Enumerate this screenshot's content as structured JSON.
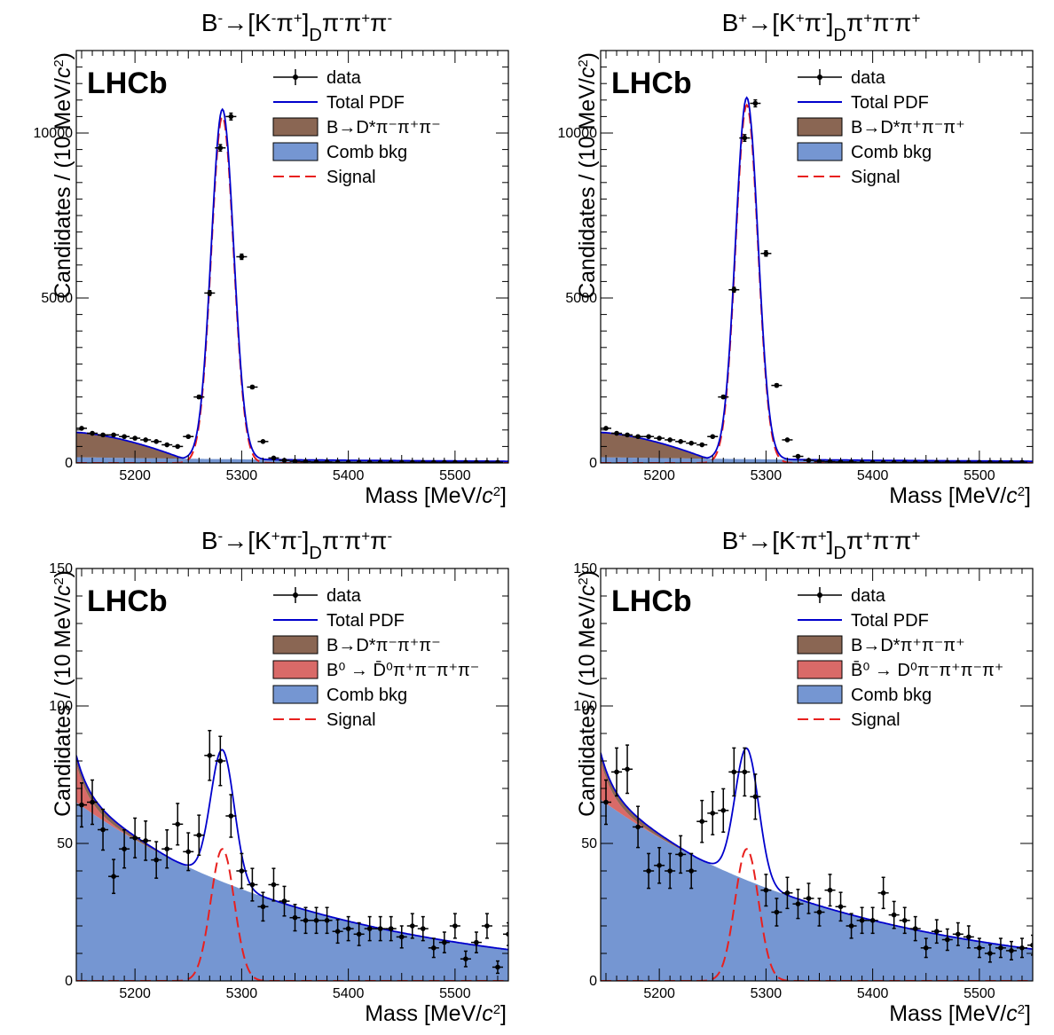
{
  "colors": {
    "data": "#000000",
    "total_pdf": "#0000cc",
    "signal": "#e8201e",
    "comb_bkg": "#7596d2",
    "partreco_bkg": "#8a6653",
    "b0_bkg": "#d96a68"
  },
  "chart_data": [
    {
      "type": "scatter",
      "title": "B⁻→[K⁻π⁺]_D π⁻π⁺π⁻",
      "title_parts": {
        "main": "B",
        "sup1": "-",
        "arrow": "→[K",
        "sup2": "-",
        "pi": "π",
        "sup3": "+",
        "close": "]",
        "sub": "D",
        "tail": "π",
        "sup4": "-",
        "tail2": "π",
        "sup5": "+",
        "tail3": "π",
        "sup6": "-"
      },
      "watermark": "LHCb",
      "xlabel": "Mass [MeV/c²]",
      "xlabel_parts": {
        "pre": "Mass [MeV/",
        "unit": "c",
        "sup": "2",
        "post": "]"
      },
      "ylabel": "Candidates / (10 MeV/c²)",
      "ylabel_parts": {
        "pre": "Candidates / (10 MeV/",
        "unit": "c",
        "sup": "2",
        "post": ")"
      },
      "xlim": [
        5145,
        5550
      ],
      "ylim": [
        0,
        12500
      ],
      "x_ticks": [
        5200,
        5300,
        5400,
        5500
      ],
      "y_ticks": [
        0,
        5000,
        10000
      ],
      "legend": [
        {
          "name": "data",
          "kind": "marker"
        },
        {
          "name": "Total PDF",
          "kind": "line"
        },
        {
          "name": "B→D*π⁻π⁺π⁻",
          "kind": "box",
          "color_key": "partreco_bkg"
        },
        {
          "name": "Comb bkg",
          "kind": "box",
          "color_key": "comb_bkg"
        },
        {
          "name": "Signal",
          "kind": "dash"
        }
      ],
      "series": [
        {
          "name": "data",
          "x": [
            5150,
            5160,
            5170,
            5180,
            5190,
            5200,
            5210,
            5220,
            5230,
            5240,
            5250,
            5260,
            5270,
            5280,
            5290,
            5300,
            5310,
            5320,
            5330,
            5340,
            5350,
            5360,
            5370,
            5380,
            5390,
            5400,
            5410,
            5420,
            5430,
            5440,
            5450,
            5460,
            5470,
            5480,
            5490,
            5500,
            5510,
            5520,
            5530,
            5540
          ],
          "y": [
            1050,
            900,
            850,
            850,
            800,
            750,
            700,
            650,
            550,
            500,
            800,
            2000,
            5150,
            9550,
            10500,
            6250,
            2300,
            650,
            150,
            80,
            50,
            40,
            30,
            30,
            20,
            20,
            20,
            20,
            20,
            20,
            20,
            20,
            20,
            20,
            20,
            20,
            20,
            20,
            20,
            20
          ]
        },
        {
          "name": "Total PDF",
          "kind": "signal_plus_bkg",
          "mu": 5282,
          "sigma": 10.5,
          "amp": 10600,
          "tail": 1450,
          "tail_decay": 15,
          "bg0": 500,
          "bg_slope": 0.003
        },
        {
          "name": "Signal",
          "mu": 5282,
          "sigma": 10.5,
          "amp": 10500
        }
      ]
    },
    {
      "type": "scatter",
      "title": "B⁺→[K⁺π⁻]_D π⁺π⁻π⁺",
      "title_parts": {
        "main": "B",
        "sup1": "+",
        "arrow": "→[K",
        "sup2": "+",
        "pi": "π",
        "sup3": "-",
        "close": "]",
        "sub": "D",
        "tail": "π",
        "sup4": "+",
        "tail2": "π",
        "sup5": "-",
        "tail3": "π",
        "sup6": "+"
      },
      "watermark": "LHCb",
      "xlabel": "Mass [MeV/c²]",
      "xlabel_parts": {
        "pre": "Mass [MeV/",
        "unit": "c",
        "sup": "2",
        "post": "]"
      },
      "ylabel": "Candidates / (10 MeV/c²)",
      "ylabel_parts": {
        "pre": "Candidates / (10 MeV/",
        "unit": "c",
        "sup": "2",
        "post": ")"
      },
      "xlim": [
        5145,
        5550
      ],
      "ylim": [
        0,
        12500
      ],
      "x_ticks": [
        5200,
        5300,
        5400,
        5500
      ],
      "y_ticks": [
        0,
        5000,
        10000
      ],
      "legend": [
        {
          "name": "data",
          "kind": "marker"
        },
        {
          "name": "Total PDF",
          "kind": "line"
        },
        {
          "name": "B→D*π⁺π⁻π⁺",
          "kind": "box",
          "color_key": "partreco_bkg"
        },
        {
          "name": "Comb bkg",
          "kind": "box",
          "color_key": "comb_bkg"
        },
        {
          "name": "Signal",
          "kind": "dash"
        }
      ],
      "series": [
        {
          "name": "data",
          "x": [
            5150,
            5160,
            5170,
            5180,
            5190,
            5200,
            5210,
            5220,
            5230,
            5240,
            5250,
            5260,
            5270,
            5280,
            5290,
            5300,
            5310,
            5320,
            5330,
            5340,
            5350,
            5360,
            5370,
            5380,
            5390,
            5400,
            5410,
            5420,
            5430,
            5440,
            5450,
            5460,
            5470,
            5480,
            5490,
            5500,
            5510,
            5520,
            5530,
            5540
          ],
          "y": [
            1050,
            900,
            850,
            800,
            800,
            750,
            700,
            650,
            600,
            550,
            800,
            2000,
            5250,
            9850,
            10900,
            6350,
            2350,
            700,
            200,
            80,
            50,
            40,
            30,
            30,
            20,
            20,
            20,
            20,
            20,
            20,
            20,
            20,
            20,
            20,
            20,
            20,
            20,
            20,
            20,
            20
          ]
        },
        {
          "name": "Total PDF",
          "kind": "signal_plus_bkg",
          "mu": 5282,
          "sigma": 10.5,
          "amp": 10950,
          "tail": 1450,
          "tail_decay": 15,
          "bg0": 500,
          "bg_slope": 0.003
        },
        {
          "name": "Signal",
          "mu": 5282,
          "sigma": 10.5,
          "amp": 10850
        }
      ]
    },
    {
      "type": "scatter",
      "title": "B⁻→[K⁺π⁻]_D π⁻π⁺π⁻",
      "title_parts": {
        "main": "B",
        "sup1": "-",
        "arrow": "→[K",
        "sup2": "+",
        "pi": "π",
        "sup3": "-",
        "close": "]",
        "sub": "D",
        "tail": "π",
        "sup4": "-",
        "tail2": "π",
        "sup5": "+",
        "tail3": "π",
        "sup6": "-"
      },
      "watermark": "LHCb",
      "xlabel": "Mass [MeV/c²]",
      "xlabel_parts": {
        "pre": "Mass [MeV/",
        "unit": "c",
        "sup": "2",
        "post": "]"
      },
      "ylabel": "Candidates / (10 MeV/c²)",
      "ylabel_parts": {
        "pre": "Candidates / (10 MeV/",
        "unit": "c",
        "sup": "2",
        "post": ")"
      },
      "xlim": [
        5145,
        5550
      ],
      "ylim": [
        0,
        150
      ],
      "x_ticks": [
        5200,
        5300,
        5400,
        5500
      ],
      "y_ticks": [
        0,
        50,
        100,
        150
      ],
      "legend": [
        {
          "name": "data",
          "kind": "marker"
        },
        {
          "name": "Total PDF",
          "kind": "line"
        },
        {
          "name": "B→D*π⁻π⁺π⁻",
          "kind": "box",
          "color_key": "partreco_bkg"
        },
        {
          "name": "B⁰ → D̄⁰π⁺π⁻π⁺π⁻",
          "kind": "box",
          "color_key": "b0_bkg"
        },
        {
          "name": "Comb bkg",
          "kind": "box",
          "color_key": "comb_bkg"
        },
        {
          "name": "Signal",
          "kind": "dash"
        }
      ],
      "series": [
        {
          "name": "data",
          "x": [
            5150,
            5160,
            5170,
            5180,
            5190,
            5200,
            5210,
            5220,
            5230,
            5240,
            5250,
            5260,
            5270,
            5280,
            5290,
            5300,
            5310,
            5320,
            5330,
            5340,
            5350,
            5360,
            5370,
            5380,
            5390,
            5400,
            5410,
            5420,
            5430,
            5440,
            5450,
            5460,
            5470,
            5480,
            5490,
            5500,
            5510,
            5520,
            5530,
            5540,
            5550
          ],
          "y": [
            64,
            65,
            55,
            38,
            48,
            52,
            51,
            44,
            48,
            57,
            47,
            53,
            82,
            80,
            60,
            40,
            35,
            27,
            35,
            29,
            23,
            22,
            22,
            22,
            18,
            19,
            17,
            19,
            19,
            19,
            16,
            20,
            19,
            12,
            14,
            20,
            8,
            14,
            20,
            5,
            17
          ]
        },
        {
          "name": "Total PDF",
          "kind": "signal_plus_bkg",
          "mu": 5282,
          "sigma": 11,
          "amp": 48,
          "tail": 12,
          "tail_decay": 12,
          "bg0": 65,
          "bg_slope": 0.0043
        },
        {
          "name": "Signal",
          "mu": 5282,
          "sigma": 11,
          "amp": 48
        }
      ]
    },
    {
      "type": "scatter",
      "title": "B⁺→[K⁻π⁺]_D π⁺π⁻π⁺",
      "title_parts": {
        "main": "B",
        "sup1": "+",
        "arrow": "→[K",
        "sup2": "-",
        "pi": "π",
        "sup3": "+",
        "close": "]",
        "sub": "D",
        "tail": "π",
        "sup4": "+",
        "tail2": "π",
        "sup5": "-",
        "tail3": "π",
        "sup6": "+"
      },
      "watermark": "LHCb",
      "xlabel": "Mass [MeV/c²]",
      "xlabel_parts": {
        "pre": "Mass [MeV/",
        "unit": "c",
        "sup": "2",
        "post": "]"
      },
      "ylabel": "Candidates / (10 MeV/c²)",
      "ylabel_parts": {
        "pre": "Candidates / (10 MeV/",
        "unit": "c",
        "sup": "2",
        "post": ")"
      },
      "xlim": [
        5145,
        5550
      ],
      "ylim": [
        0,
        150
      ],
      "x_ticks": [
        5200,
        5300,
        5400,
        5500
      ],
      "y_ticks": [
        0,
        50,
        100,
        150
      ],
      "legend": [
        {
          "name": "data",
          "kind": "marker"
        },
        {
          "name": "Total PDF",
          "kind": "line"
        },
        {
          "name": "B→D*π⁺π⁻π⁺",
          "kind": "box",
          "color_key": "partreco_bkg"
        },
        {
          "name": "B̄⁰ → D⁰π⁻π⁺π⁻π⁺",
          "kind": "box",
          "color_key": "b0_bkg"
        },
        {
          "name": "Comb bkg",
          "kind": "box",
          "color_key": "comb_bkg"
        },
        {
          "name": "Signal",
          "kind": "dash"
        }
      ],
      "series": [
        {
          "name": "data",
          "x": [
            5150,
            5160,
            5170,
            5180,
            5190,
            5200,
            5210,
            5220,
            5230,
            5240,
            5250,
            5260,
            5270,
            5280,
            5290,
            5300,
            5310,
            5320,
            5330,
            5340,
            5350,
            5360,
            5370,
            5380,
            5390,
            5400,
            5410,
            5420,
            5430,
            5440,
            5450,
            5460,
            5470,
            5480,
            5490,
            5500,
            5510,
            5520,
            5530,
            5540,
            5550
          ],
          "y": [
            65,
            76,
            77,
            56,
            40,
            42,
            40,
            46,
            40,
            58,
            61,
            62,
            76,
            76,
            67,
            33,
            25,
            32,
            28,
            30,
            25,
            33,
            27,
            20,
            22,
            22,
            32,
            24,
            22,
            19,
            12,
            18,
            15,
            17,
            16,
            12,
            10,
            12,
            11,
            12,
            13
          ]
        },
        {
          "name": "Total PDF",
          "kind": "signal_plus_bkg",
          "mu": 5282,
          "sigma": 11,
          "amp": 48,
          "tail": 12,
          "tail_decay": 12,
          "bg0": 66,
          "bg_slope": 0.0043
        },
        {
          "name": "Signal",
          "mu": 5282,
          "sigma": 11,
          "amp": 48
        }
      ]
    }
  ]
}
